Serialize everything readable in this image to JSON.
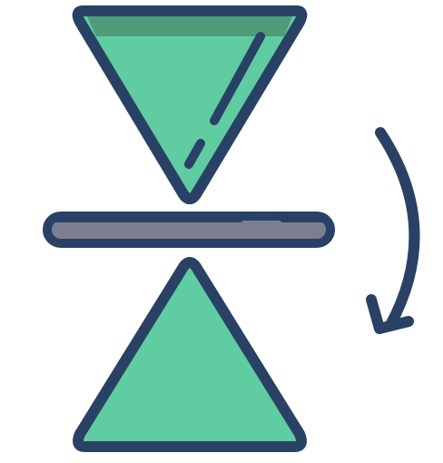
{
  "icon": {
    "name": "flip-vertical-icon",
    "colors": {
      "outline": "#2a4166",
      "fill_green": "#5fcca2",
      "fill_green_shade": "#4f9b7b",
      "bar_fill": "#7b7f91",
      "highlight": "#2a4166",
      "background": "#ffffff"
    },
    "parts": [
      "top-inverted-triangle",
      "mirror-bar",
      "bottom-triangle",
      "rotation-arrow"
    ]
  }
}
